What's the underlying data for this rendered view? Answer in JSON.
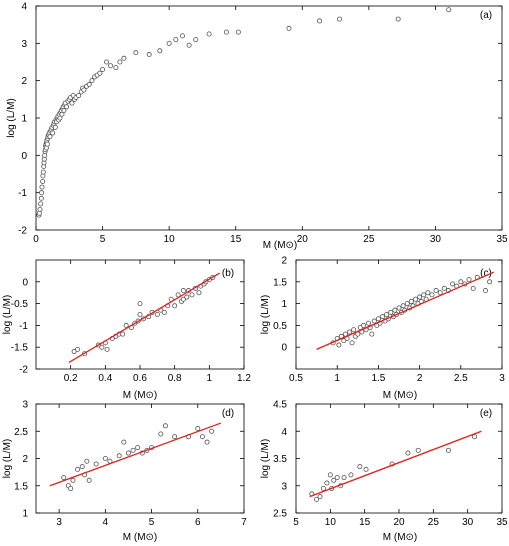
{
  "chart_data": [
    {
      "type": "scatter",
      "panel_label": "(a)",
      "xlabel": "M (M⊙)",
      "ylabel": "log (L/M)",
      "xlim": [
        0,
        35
      ],
      "ylim": [
        -2,
        4
      ],
      "xticks": [
        0,
        5,
        10,
        15,
        20,
        25,
        30,
        35
      ],
      "yticks": [
        -2,
        -1,
        0,
        1,
        2,
        3,
        4
      ],
      "fit_line": null,
      "points": [
        [
          0.22,
          -1.6
        ],
        [
          0.25,
          -1.55
        ],
        [
          0.3,
          -1.45
        ],
        [
          0.35,
          -1.3
        ],
        [
          0.4,
          -1.15
        ],
        [
          0.42,
          -1.0
        ],
        [
          0.45,
          -0.85
        ],
        [
          0.5,
          -0.7
        ],
        [
          0.52,
          -0.55
        ],
        [
          0.55,
          -0.45
        ],
        [
          0.58,
          -0.3
        ],
        [
          0.6,
          -0.2
        ],
        [
          0.62,
          -0.1
        ],
        [
          0.65,
          0.0
        ],
        [
          0.68,
          0.1
        ],
        [
          0.7,
          0.15
        ],
        [
          0.72,
          0.25
        ],
        [
          0.75,
          0.3
        ],
        [
          0.78,
          0.2
        ],
        [
          0.8,
          0.35
        ],
        [
          0.82,
          0.4
        ],
        [
          0.85,
          0.3
        ],
        [
          0.88,
          0.45
        ],
        [
          0.9,
          0.5
        ],
        [
          0.95,
          0.55
        ],
        [
          1.0,
          0.6
        ],
        [
          1.05,
          0.5
        ],
        [
          1.1,
          0.65
        ],
        [
          1.15,
          0.7
        ],
        [
          1.2,
          0.75
        ],
        [
          1.25,
          0.6
        ],
        [
          1.3,
          0.8
        ],
        [
          1.35,
          0.85
        ],
        [
          1.4,
          0.9
        ],
        [
          1.45,
          0.75
        ],
        [
          1.5,
          0.95
        ],
        [
          1.55,
          0.9
        ],
        [
          1.6,
          1.0
        ],
        [
          1.65,
          1.05
        ],
        [
          1.7,
          0.95
        ],
        [
          1.75,
          1.1
        ],
        [
          1.8,
          1.0
        ],
        [
          1.85,
          1.15
        ],
        [
          1.9,
          1.2
        ],
        [
          1.95,
          1.1
        ],
        [
          2.0,
          1.25
        ],
        [
          2.05,
          1.3
        ],
        [
          2.1,
          1.2
        ],
        [
          2.15,
          1.35
        ],
        [
          2.2,
          1.4
        ],
        [
          2.3,
          1.3
        ],
        [
          2.4,
          1.45
        ],
        [
          2.5,
          1.5
        ],
        [
          2.6,
          1.55
        ],
        [
          2.7,
          1.4
        ],
        [
          2.8,
          1.6
        ],
        [
          2.9,
          1.5
        ],
        [
          3.0,
          1.55
        ],
        [
          3.2,
          1.6
        ],
        [
          3.4,
          1.7
        ],
        [
          3.5,
          1.8
        ],
        [
          3.6,
          1.75
        ],
        [
          3.8,
          1.85
        ],
        [
          4.0,
          1.9
        ],
        [
          4.2,
          2.0
        ],
        [
          4.4,
          2.1
        ],
        [
          4.6,
          2.15
        ],
        [
          4.8,
          2.2
        ],
        [
          5.0,
          2.3
        ],
        [
          5.3,
          2.5
        ],
        [
          5.6,
          2.4
        ],
        [
          6.0,
          2.35
        ],
        [
          6.3,
          2.5
        ],
        [
          6.6,
          2.6
        ],
        [
          7.5,
          2.75
        ],
        [
          8.5,
          2.7
        ],
        [
          9.3,
          2.8
        ],
        [
          10.0,
          3.0
        ],
        [
          10.5,
          3.1
        ],
        [
          11.0,
          3.2
        ],
        [
          11.5,
          2.95
        ],
        [
          12.0,
          3.1
        ],
        [
          13.0,
          3.25
        ],
        [
          14.3,
          3.3
        ],
        [
          15.2,
          3.3
        ],
        [
          19.0,
          3.4
        ],
        [
          21.3,
          3.6
        ],
        [
          22.8,
          3.65
        ],
        [
          27.2,
          3.65
        ],
        [
          31.0,
          3.9
        ]
      ]
    },
    {
      "type": "scatter",
      "panel_label": "(b)",
      "xlabel": "M (M⊙)",
      "ylabel": "log (L/M)",
      "xlim": [
        0.2,
        1.2
      ],
      "ylim": [
        -2,
        0.5
      ],
      "xlim_axis": [
        0,
        1.2
      ],
      "xticks": [
        0.2,
        0.4,
        0.6,
        0.8,
        1.0,
        1.2
      ],
      "yticks": [
        -2,
        -1.5,
        -1,
        -0.5,
        0
      ],
      "fit_line": [
        [
          0.19,
          -1.85
        ],
        [
          1.06,
          0.2
        ]
      ],
      "points": [
        [
          0.22,
          -1.6
        ],
        [
          0.24,
          -1.55
        ],
        [
          0.28,
          -1.65
        ],
        [
          0.36,
          -1.45
        ],
        [
          0.38,
          -1.5
        ],
        [
          0.4,
          -1.4
        ],
        [
          0.41,
          -1.55
        ],
        [
          0.44,
          -1.3
        ],
        [
          0.46,
          -1.25
        ],
        [
          0.48,
          -1.2
        ],
        [
          0.5,
          -1.2
        ],
        [
          0.52,
          -1.0
        ],
        [
          0.55,
          -1.05
        ],
        [
          0.57,
          -0.95
        ],
        [
          0.59,
          -0.9
        ],
        [
          0.6,
          -0.75
        ],
        [
          0.62,
          -0.85
        ],
        [
          0.65,
          -0.8
        ],
        [
          0.67,
          -0.7
        ],
        [
          0.7,
          -0.75
        ],
        [
          0.72,
          -0.65
        ],
        [
          0.74,
          -0.7
        ],
        [
          0.76,
          -0.55
        ],
        [
          0.78,
          -0.4
        ],
        [
          0.8,
          -0.55
        ],
        [
          0.82,
          -0.3
        ],
        [
          0.84,
          -0.45
        ],
        [
          0.85,
          -0.4
        ],
        [
          0.87,
          -0.35
        ],
        [
          0.88,
          -0.2
        ],
        [
          0.9,
          -0.3
        ],
        [
          0.92,
          -0.15
        ],
        [
          0.94,
          -0.25
        ],
        [
          0.95,
          -0.1
        ],
        [
          0.97,
          -0.05
        ],
        [
          0.98,
          0.0
        ],
        [
          1.0,
          0.05
        ],
        [
          1.02,
          0.1
        ],
        [
          0.6,
          -0.5
        ],
        [
          0.85,
          -0.2
        ]
      ]
    },
    {
      "type": "scatter",
      "panel_label": "(c)",
      "xlabel": "M (M⊙)",
      "ylabel": "log (L/M)",
      "xlim": [
        0.5,
        3
      ],
      "ylim": [
        -0.5,
        2
      ],
      "xticks": [
        0.5,
        1,
        1.5,
        2,
        2.5,
        3
      ],
      "yticks": [
        0,
        0.5,
        1,
        1.5,
        2
      ],
      "fit_line": [
        [
          0.75,
          -0.05
        ],
        [
          2.9,
          1.72
        ]
      ],
      "points": [
        [
          0.95,
          0.1
        ],
        [
          1.0,
          0.2
        ],
        [
          1.02,
          0.05
        ],
        [
          1.05,
          0.25
        ],
        [
          1.08,
          0.15
        ],
        [
          1.1,
          0.3
        ],
        [
          1.12,
          0.2
        ],
        [
          1.15,
          0.35
        ],
        [
          1.18,
          0.1
        ],
        [
          1.2,
          0.4
        ],
        [
          1.22,
          0.25
        ],
        [
          1.25,
          0.3
        ],
        [
          1.28,
          0.45
        ],
        [
          1.3,
          0.35
        ],
        [
          1.32,
          0.5
        ],
        [
          1.35,
          0.4
        ],
        [
          1.38,
          0.55
        ],
        [
          1.4,
          0.45
        ],
        [
          1.42,
          0.3
        ],
        [
          1.45,
          0.6
        ],
        [
          1.48,
          0.5
        ],
        [
          1.5,
          0.65
        ],
        [
          1.52,
          0.55
        ],
        [
          1.55,
          0.7
        ],
        [
          1.58,
          0.6
        ],
        [
          1.6,
          0.75
        ],
        [
          1.62,
          0.65
        ],
        [
          1.65,
          0.8
        ],
        [
          1.68,
          0.7
        ],
        [
          1.7,
          0.85
        ],
        [
          1.72,
          0.75
        ],
        [
          1.75,
          0.9
        ],
        [
          1.78,
          0.8
        ],
        [
          1.8,
          0.95
        ],
        [
          1.82,
          0.85
        ],
        [
          1.85,
          1.0
        ],
        [
          1.88,
          0.9
        ],
        [
          1.9,
          1.05
        ],
        [
          1.92,
          0.95
        ],
        [
          1.95,
          1.1
        ],
        [
          1.98,
          1.0
        ],
        [
          2.0,
          1.15
        ],
        [
          2.02,
          1.05
        ],
        [
          2.05,
          1.2
        ],
        [
          2.08,
          1.1
        ],
        [
          2.1,
          1.25
        ],
        [
          2.15,
          1.2
        ],
        [
          2.2,
          1.3
        ],
        [
          2.25,
          1.25
        ],
        [
          2.3,
          1.35
        ],
        [
          2.35,
          1.3
        ],
        [
          2.4,
          1.45
        ],
        [
          2.45,
          1.4
        ],
        [
          2.5,
          1.5
        ],
        [
          2.55,
          1.45
        ],
        [
          2.6,
          1.55
        ],
        [
          2.65,
          1.35
        ],
        [
          2.7,
          1.6
        ],
        [
          2.8,
          1.3
        ],
        [
          2.85,
          1.5
        ]
      ]
    },
    {
      "type": "scatter",
      "panel_label": "(d)",
      "xlabel": "M (M⊙)",
      "ylabel": "log (L/M)",
      "xlim": [
        3,
        7
      ],
      "ylim": [
        1,
        3
      ],
      "xlim_axis": [
        2.5,
        7
      ],
      "xticks": [
        3,
        4,
        5,
        6,
        7
      ],
      "yticks": [
        1,
        1.5,
        2,
        2.5,
        3
      ],
      "fit_line": [
        [
          2.8,
          1.5
        ],
        [
          6.5,
          2.65
        ]
      ],
      "points": [
        [
          3.1,
          1.65
        ],
        [
          3.2,
          1.5
        ],
        [
          3.25,
          1.45
        ],
        [
          3.3,
          1.6
        ],
        [
          3.4,
          1.8
        ],
        [
          3.5,
          1.85
        ],
        [
          3.55,
          1.7
        ],
        [
          3.6,
          1.95
        ],
        [
          3.65,
          1.6
        ],
        [
          3.8,
          1.9
        ],
        [
          4.0,
          2.0
        ],
        [
          4.1,
          1.95
        ],
        [
          4.3,
          2.05
        ],
        [
          4.4,
          2.3
        ],
        [
          4.5,
          2.1
        ],
        [
          4.6,
          2.15
        ],
        [
          4.7,
          2.2
        ],
        [
          4.8,
          2.1
        ],
        [
          4.9,
          2.15
        ],
        [
          5.0,
          2.2
        ],
        [
          5.2,
          2.45
        ],
        [
          5.3,
          2.6
        ],
        [
          5.5,
          2.4
        ],
        [
          5.8,
          2.4
        ],
        [
          6.0,
          2.55
        ],
        [
          6.1,
          2.4
        ],
        [
          6.2,
          2.3
        ],
        [
          6.3,
          2.5
        ]
      ]
    },
    {
      "type": "scatter",
      "panel_label": "(e)",
      "xlabel": "M (M⊙)",
      "ylabel": "log (L/M)",
      "xlim": [
        5,
        35
      ],
      "ylim": [
        2.5,
        4.5
      ],
      "xticks": [
        5,
        10,
        15,
        20,
        25,
        30,
        35
      ],
      "yticks": [
        2.5,
        3,
        3.5,
        4,
        4.5
      ],
      "fit_line": [
        [
          7,
          2.8
        ],
        [
          32,
          4.0
        ]
      ],
      "points": [
        [
          7.3,
          2.85
        ],
        [
          8.0,
          2.75
        ],
        [
          8.5,
          2.8
        ],
        [
          9.0,
          2.95
        ],
        [
          9.5,
          3.05
        ],
        [
          10.0,
          3.2
        ],
        [
          10.2,
          2.95
        ],
        [
          10.5,
          3.1
        ],
        [
          11.0,
          3.15
        ],
        [
          11.5,
          3.0
        ],
        [
          12.0,
          3.15
        ],
        [
          13.0,
          3.2
        ],
        [
          14.3,
          3.35
        ],
        [
          15.2,
          3.3
        ],
        [
          19.0,
          3.4
        ],
        [
          21.3,
          3.6
        ],
        [
          22.8,
          3.65
        ],
        [
          27.2,
          3.65
        ],
        [
          31.0,
          3.9
        ]
      ]
    }
  ]
}
